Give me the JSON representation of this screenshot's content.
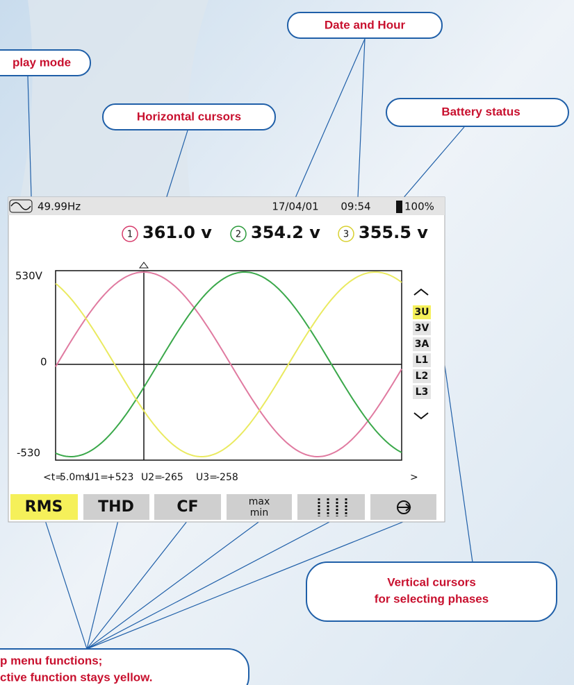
{
  "callouts": {
    "display_mode": "play mode",
    "horizontal_cursors": "Horizontal cursors",
    "date_and_hour": "Date and Hour",
    "battery_status": "Battery status",
    "vertical_cursors": [
      "Vertical cursors",
      "for selecting phases"
    ],
    "menu_functions": [
      "p menu functions;",
      "ctive function stays yellow."
    ]
  },
  "screen": {
    "status_bar": {
      "frequency": "49.99Hz",
      "date": "17/04/01",
      "time": "09:54",
      "battery": "100%"
    },
    "readings": [
      {
        "phase": "1",
        "value": "361.0 v"
      },
      {
        "phase": "2",
        "value": "354.2 v"
      },
      {
        "phase": "3",
        "value": "355.5 v"
      }
    ],
    "axis_labels": [
      "530V",
      "0",
      "-530"
    ],
    "side_buttons": [
      "3U",
      "3V",
      "3A",
      "L1",
      "L2",
      "L3"
    ],
    "cursor_readout": [
      "<t=",
      "5.0ms",
      "U1=",
      "+523",
      "U2=",
      "-265",
      "U3=",
      "-258",
      ">"
    ],
    "menu": {
      "rms": "RMS",
      "thd": "THD",
      "cf": "CF",
      "max": "max",
      "min": "min"
    }
  }
}
